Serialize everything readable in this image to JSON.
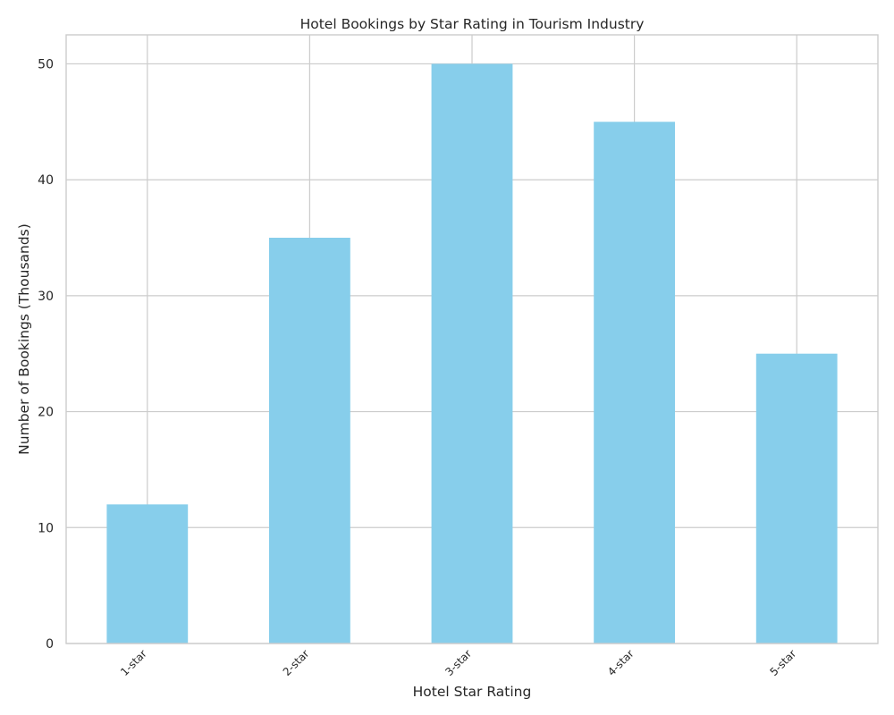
{
  "chart_data": {
    "type": "bar",
    "title": "Hotel Bookings by Star Rating in Tourism Industry",
    "xlabel": "Hotel Star Rating",
    "ylabel": "Number of Bookings (Thousands)",
    "categories": [
      "1-star",
      "2-star",
      "3-star",
      "4-star",
      "5-star"
    ],
    "values": [
      12,
      35,
      50,
      45,
      25
    ],
    "ylim": [
      0,
      52.5
    ],
    "yticks": [
      "0",
      "10",
      "20",
      "30",
      "40",
      "50"
    ],
    "grid": true,
    "legend": "none",
    "bar_color": "#87CEEB"
  }
}
